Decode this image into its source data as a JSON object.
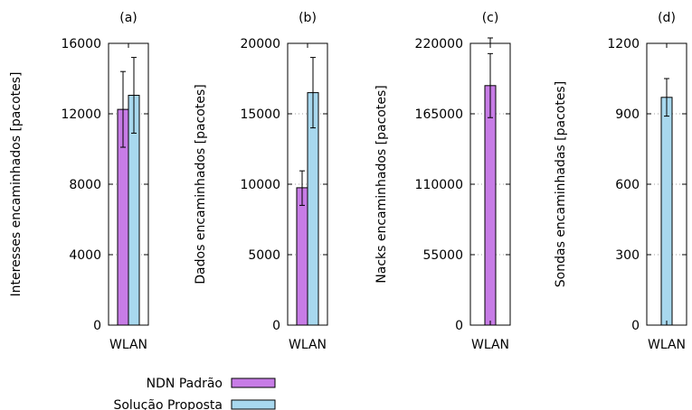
{
  "colors": {
    "ndn": "#c77ce6",
    "proposta": "#a8d8ee",
    "outline": "#000000",
    "grid": "#a0a0a0"
  },
  "legend": [
    {
      "key": "ndn",
      "label": "NDN Padrão"
    },
    {
      "key": "proposta",
      "label": "Solução Proposta"
    }
  ],
  "chart_data": [
    {
      "type": "bar",
      "title": "(a)",
      "ylabel": "Interesses encaminhados [pacotes]",
      "categories": [
        "WLAN"
      ],
      "ylim": [
        0,
        16000
      ],
      "yticks": [
        0,
        4000,
        8000,
        12000,
        16000
      ],
      "series": [
        {
          "name": "NDN Padrão",
          "key": "ndn",
          "values": [
            12250
          ],
          "err_low": [
            10100
          ],
          "err_high": [
            14400
          ]
        },
        {
          "name": "Solução Proposta",
          "key": "proposta",
          "values": [
            13050
          ],
          "err_low": [
            10900
          ],
          "err_high": [
            15200
          ]
        }
      ]
    },
    {
      "type": "bar",
      "title": "(b)",
      "ylabel": "Dados encaminhados [pacotes]",
      "categories": [
        "WLAN"
      ],
      "ylim": [
        0,
        20000
      ],
      "yticks": [
        0,
        5000,
        10000,
        15000,
        20000
      ],
      "series": [
        {
          "name": "NDN Padrão",
          "key": "ndn",
          "values": [
            9750
          ],
          "err_low": [
            8500
          ],
          "err_high": [
            10950
          ]
        },
        {
          "name": "Solução Proposta",
          "key": "proposta",
          "values": [
            16500
          ],
          "err_low": [
            14000
          ],
          "err_high": [
            19000
          ]
        }
      ]
    },
    {
      "type": "bar",
      "title": "(c)",
      "ylabel": "Nacks encaminhados [pacotes]",
      "categories": [
        "WLAN"
      ],
      "ylim": [
        0,
        220000
      ],
      "yticks": [
        0,
        55000,
        110000,
        165000,
        220000
      ],
      "series": [
        {
          "name": "NDN Padrão",
          "key": "ndn",
          "values": [
            187000
          ],
          "err_low": [
            162000
          ],
          "err_high": [
            212000
          ]
        }
      ],
      "extra_error_top": 225000
    },
    {
      "type": "bar",
      "title": "(d)",
      "ylabel": "Sondas encaminhadas [pacotes]",
      "categories": [
        "WLAN"
      ],
      "ylim": [
        0,
        1200
      ],
      "yticks": [
        0,
        300,
        600,
        900,
        1200
      ],
      "series": [
        {
          "name": "Solução Proposta",
          "key": "proposta",
          "values": [
            970
          ],
          "err_low": [
            890
          ],
          "err_high": [
            1050
          ]
        }
      ]
    }
  ]
}
